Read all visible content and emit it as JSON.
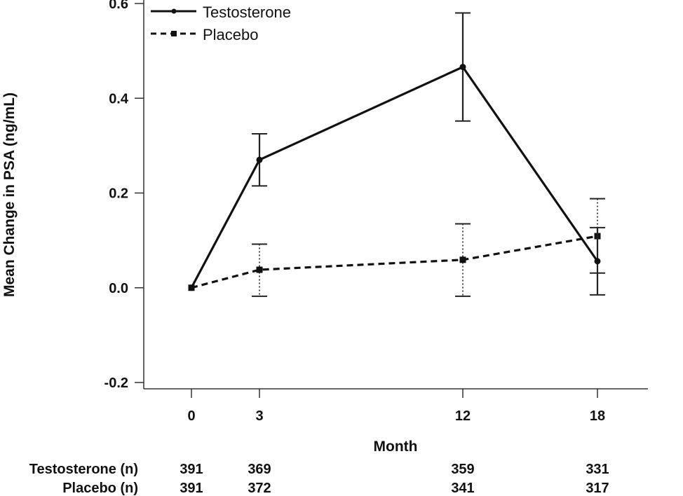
{
  "chart_data": {
    "type": "line",
    "title": "",
    "xlabel": "Month",
    "ylabel": "Mean Change in PSA (ng/mL)",
    "x": [
      0,
      3,
      12,
      18
    ],
    "x_tick_labels": [
      "0",
      "3",
      "12",
      "18"
    ],
    "xlim": [
      -1.5,
      20.3
    ],
    "ylim": [
      -0.2,
      0.6
    ],
    "y_ticks": [
      -0.2,
      0.0,
      0.2,
      0.4,
      0.6
    ],
    "y_tick_labels": [
      "-0.2",
      "0.0",
      "0.2",
      "0.4",
      "0.6"
    ],
    "grid": false,
    "legend_position": "top-left",
    "series": [
      {
        "name": "Testosterone",
        "line_style": "solid",
        "marker": "circle",
        "values": [
          0.0,
          0.27,
          0.466,
          0.056
        ],
        "error_lower": [
          0.0,
          0.215,
          0.352,
          -0.015
        ],
        "error_upper": [
          0.0,
          0.325,
          0.58,
          0.127
        ]
      },
      {
        "name": "Placebo",
        "line_style": "dashed",
        "marker": "square",
        "values": [
          0.0,
          0.038,
          0.059,
          0.109
        ],
        "error_lower": [
          0.0,
          -0.018,
          -0.018,
          0.031
        ],
        "error_upper": [
          0.0,
          0.092,
          0.135,
          0.188
        ]
      }
    ],
    "n_table": {
      "rows": [
        {
          "label": "Testosterone (n)",
          "values": [
            "391",
            "369",
            "359",
            "331"
          ]
        },
        {
          "label": "Placebo (n)",
          "values": [
            "391",
            "372",
            "341",
            "317"
          ]
        }
      ]
    }
  }
}
